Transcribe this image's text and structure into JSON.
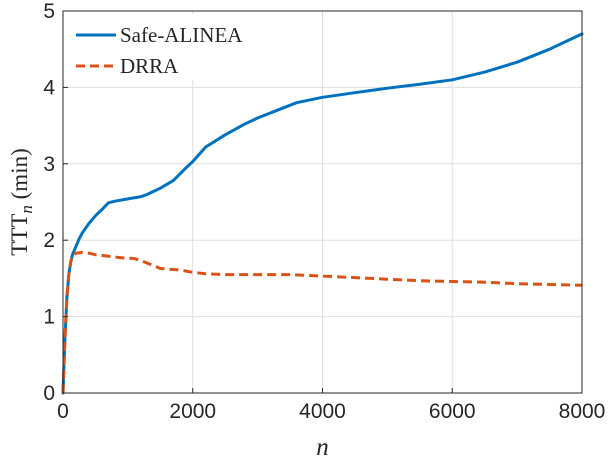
{
  "chart_data": {
    "type": "line",
    "title": "",
    "xlabel": "n",
    "ylabel": {
      "main": "TTT",
      "sub": "n",
      "unit": " (min)"
    },
    "xlim": [
      0,
      8000
    ],
    "ylim": [
      0,
      5
    ],
    "xticks": [
      0,
      2000,
      4000,
      6000,
      8000
    ],
    "yticks": [
      0,
      1,
      2,
      3,
      4,
      5
    ],
    "xtick_labels": [
      "0",
      "2000",
      "4000",
      "6000",
      "8000"
    ],
    "ytick_labels": [
      "0",
      "1",
      "2",
      "3",
      "4",
      "5"
    ],
    "grid": true,
    "legend_position": "top-left",
    "series": [
      {
        "name": "Safe-ALINEA",
        "color": "#0072BD",
        "style": "solid",
        "x": [
          0,
          30,
          60,
          90,
          120,
          150,
          200,
          250,
          300,
          350,
          400,
          500,
          600,
          700,
          800,
          1000,
          1200,
          1300,
          1500,
          1700,
          1900,
          2000,
          2200,
          2500,
          2800,
          3000,
          3300,
          3600,
          4000,
          4500,
          5000,
          5500,
          6000,
          6500,
          7000,
          7500,
          8000
        ],
        "y": [
          0,
          0.7,
          1.25,
          1.55,
          1.72,
          1.82,
          1.92,
          2.02,
          2.1,
          2.16,
          2.22,
          2.32,
          2.4,
          2.49,
          2.51,
          2.54,
          2.57,
          2.6,
          2.68,
          2.78,
          2.95,
          3.03,
          3.22,
          3.38,
          3.52,
          3.6,
          3.7,
          3.8,
          3.87,
          3.93,
          3.99,
          4.04,
          4.1,
          4.2,
          4.33,
          4.5,
          4.7
        ]
      },
      {
        "name": "DRRA",
        "color": "#D95319",
        "style": "dashed",
        "x": [
          0,
          30,
          60,
          90,
          120,
          150,
          200,
          300,
          400,
          500,
          700,
          900,
          1100,
          1300,
          1500,
          1800,
          2000,
          2200,
          2500,
          3000,
          3500,
          4000,
          4500,
          5000,
          5500,
          6000,
          6500,
          7000,
          7500,
          8000
        ],
        "y": [
          0,
          0.7,
          1.25,
          1.55,
          1.72,
          1.8,
          1.83,
          1.84,
          1.83,
          1.81,
          1.79,
          1.77,
          1.76,
          1.7,
          1.63,
          1.61,
          1.58,
          1.56,
          1.55,
          1.55,
          1.55,
          1.53,
          1.51,
          1.49,
          1.47,
          1.46,
          1.45,
          1.43,
          1.42,
          1.41
        ]
      }
    ]
  }
}
